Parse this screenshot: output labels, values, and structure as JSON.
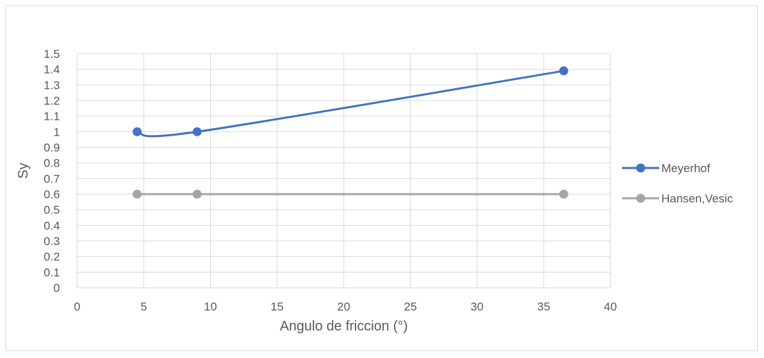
{
  "chart_data": {
    "type": "line",
    "title": "",
    "xlabel": "Angulo de friccion (°)",
    "ylabel": "Sy",
    "xlim": [
      0,
      40
    ],
    "ylim": [
      0,
      1.5
    ],
    "x_ticks": [
      "0",
      "5",
      "10",
      "15",
      "20",
      "25",
      "30",
      "35",
      "40"
    ],
    "y_ticks": [
      "0",
      "0.1",
      "0.2",
      "0.3",
      "0.4",
      "0.5",
      "0.6",
      "0.7",
      "0.8",
      "0.9",
      "1",
      "1.1",
      "1.2",
      "1.3",
      "1.4",
      "1.5"
    ],
    "grid": true,
    "legend_position": "right",
    "smooth": true,
    "series": [
      {
        "name": "Meyerhof",
        "color": "#4472c4",
        "x": [
          4.5,
          9,
          36.5
        ],
        "y": [
          1.0,
          1.0,
          1.39
        ]
      },
      {
        "name": "Hansen,Vesic",
        "color": "#a5a5a5",
        "x": [
          4.5,
          9,
          36.5
        ],
        "y": [
          0.6,
          0.6,
          0.6
        ]
      }
    ]
  }
}
